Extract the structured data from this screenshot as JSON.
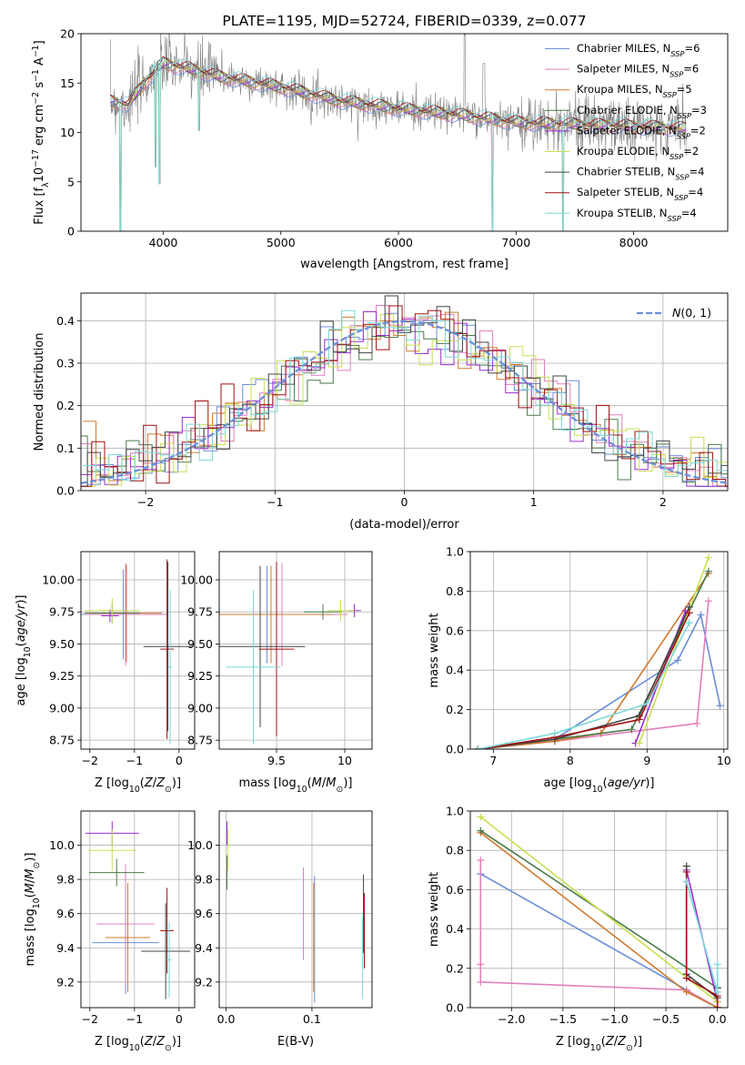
{
  "colors": {
    "chabrier_miles": "#6a8fd8",
    "salpeter_miles": "#e17fbd",
    "kroupa_miles": "#d07a30",
    "chabrier_elodie": "#4a7a4a",
    "salpeter_elodie": "#9a2fd0",
    "kroupa_elodie": "#c8e050",
    "chabrier_stelib": "#444444",
    "salpeter_stelib": "#a01010",
    "kroupa_stelib": "#7ad8d8",
    "normal_curve": "#6a8fd8",
    "data_spectrum": "#808080"
  },
  "chart_data": [
    {
      "id": "spectrum",
      "type": "line",
      "title": "PLATE=1195, MJD=52724, FIBERID=0339, z=0.077",
      "xlabel": "wavelength [Angstrom, rest frame]",
      "ylabel": "Flux [f_λ 10^-17 erg cm^-2 s^-1 A^-1]",
      "xlim": [
        3300,
        8800
      ],
      "ylim": [
        0,
        20
      ],
      "xticks": [
        4000,
        5000,
        6000,
        7000,
        8000
      ],
      "yticks": [
        0,
        5,
        10,
        15,
        20
      ],
      "grid": false,
      "legend_position": "top-right",
      "legend": [
        {
          "label": "Chabrier MILES, N",
          "sub": "SSP",
          "suffix": "=6",
          "color_key": "chabrier_miles"
        },
        {
          "label": "Salpeter MILES, N",
          "sub": "SSP",
          "suffix": "=6",
          "color_key": "salpeter_miles"
        },
        {
          "label": "Kroupa MILES, N",
          "sub": "SSP",
          "suffix": "=5",
          "color_key": "kroupa_miles"
        },
        {
          "label": "Chabrier ELODIE, N",
          "sub": "SSP",
          "suffix": "=3",
          "color_key": "chabrier_elodie"
        },
        {
          "label": "Salpeter ELODIE, N",
          "sub": "SSP",
          "suffix": "=2",
          "color_key": "salpeter_elodie"
        },
        {
          "label": "Kroupa ELODIE, N",
          "sub": "SSP",
          "suffix": "=2",
          "color_key": "kroupa_elodie"
        },
        {
          "label": "Chabrier STELIB, N",
          "sub": "SSP",
          "suffix": "=4",
          "color_key": "chabrier_stelib"
        },
        {
          "label": "Salpeter STELIB, N",
          "sub": "SSP",
          "suffix": "=4",
          "color_key": "salpeter_stelib"
        },
        {
          "label": "Kroupa STELIB, N",
          "sub": "SSP",
          "suffix": "=4",
          "color_key": "kroupa_stelib"
        }
      ],
      "continuum": [
        [
          3550,
          13.2
        ],
        [
          3700,
          12.8
        ],
        [
          3850,
          15.2
        ],
        [
          4000,
          17.0
        ],
        [
          4200,
          16.5
        ],
        [
          4500,
          15.6
        ],
        [
          5000,
          14.6
        ],
        [
          5500,
          13.2
        ],
        [
          6000,
          12.4
        ],
        [
          6500,
          11.8
        ],
        [
          7000,
          11.0
        ],
        [
          7500,
          10.8
        ],
        [
          8000,
          10.6
        ],
        [
          8400,
          10.4
        ]
      ],
      "absorption_lines": [
        [
          3635,
          0
        ],
        [
          3934,
          6.5
        ],
        [
          3969,
          4.8
        ],
        [
          4305,
          10.2
        ],
        [
          6800,
          0
        ],
        [
          7400,
          0
        ]
      ],
      "data_range": [
        3550,
        8450
      ]
    },
    {
      "id": "residuals",
      "type": "histogram",
      "xlabel": "(data-model)/error",
      "ylabel": "Normed distribution",
      "xlim": [
        -2.5,
        2.5
      ],
      "ylim": [
        0,
        0.465
      ],
      "xticks": [
        -2,
        -1,
        0,
        1,
        2
      ],
      "yticks": [
        0.0,
        0.1,
        0.2,
        0.3,
        0.4
      ],
      "grid": true,
      "legend": [
        {
          "label": "N(0,1)",
          "color_key": "normal_curve",
          "style": "dashed"
        }
      ],
      "legend_position": "top-right",
      "bin_width": 0.1
    },
    {
      "id": "age_vs_Z",
      "type": "errorbar",
      "xlabel": "Z [log10(Z/Z_sun)]",
      "ylabel": "age [log10(age/yr)]",
      "xlim": [
        -2.2,
        0.35
      ],
      "ylim": [
        8.68,
        10.22
      ],
      "xticks": [
        -2,
        -1,
        0
      ],
      "yticks": [
        8.75,
        9.0,
        9.25,
        9.5,
        9.75,
        10.0
      ],
      "points": [
        {
          "color_key": "chabrier_miles",
          "x": -1.25,
          "xerr": 1.0,
          "y": 9.73,
          "yerr": 0.35
        },
        {
          "color_key": "salpeter_miles",
          "x": -1.2,
          "xerr": 0.9,
          "y": 9.73,
          "yerr": 0.4
        },
        {
          "color_key": "kroupa_miles",
          "x": -1.18,
          "xerr": 0.8,
          "y": 9.74,
          "yerr": 0.38
        },
        {
          "color_key": "chabrier_elodie",
          "x": -1.5,
          "xerr": 0.62,
          "y": 9.74,
          "yerr": 0.08
        },
        {
          "color_key": "salpeter_elodie",
          "x": -1.55,
          "xerr": 0.2,
          "y": 9.72,
          "yerr": 0.05
        },
        {
          "color_key": "kroupa_elodie",
          "x": -1.5,
          "xerr": 0.62,
          "y": 9.76,
          "yerr": 0.1
        },
        {
          "color_key": "chabrier_stelib",
          "x": -0.25,
          "xerr": 0.55,
          "y": 9.48,
          "yerr": 0.66
        },
        {
          "color_key": "salpeter_stelib",
          "x": -0.27,
          "xerr": 0.15,
          "y": 9.46,
          "yerr": 0.7
        },
        {
          "color_key": "kroupa_stelib",
          "x": -0.2,
          "xerr": 0.05,
          "y": 9.32,
          "yerr": 0.6
        }
      ]
    },
    {
      "id": "age_vs_mass",
      "type": "errorbar",
      "xlabel": "mass [log10(M/M_sun)]",
      "ylabel": "",
      "xlim": [
        9.08,
        10.2
      ],
      "ylim": [
        8.68,
        10.22
      ],
      "xticks": [
        9.5,
        10.0
      ],
      "yticks": [
        8.75,
        9.0,
        9.25,
        9.5,
        9.75,
        10.0
      ],
      "points": [
        {
          "color_key": "chabrier_miles",
          "x": 9.43,
          "xerr": 0.45,
          "y": 9.73,
          "yerr": 0.38
        },
        {
          "color_key": "salpeter_miles",
          "x": 9.54,
          "xerr": 0.48,
          "y": 9.73,
          "yerr": 0.4
        },
        {
          "color_key": "kroupa_miles",
          "x": 9.46,
          "xerr": 0.45,
          "y": 9.73,
          "yerr": 0.38
        },
        {
          "color_key": "chabrier_elodie",
          "x": 9.84,
          "xerr": 0.14,
          "y": 9.75,
          "yerr": 0.06
        },
        {
          "color_key": "salpeter_elodie",
          "x": 10.07,
          "xerr": 0.05,
          "y": 9.76,
          "yerr": 0.05
        },
        {
          "color_key": "kroupa_elodie",
          "x": 9.97,
          "xerr": 0.1,
          "y": 9.76,
          "yerr": 0.08
        },
        {
          "color_key": "chabrier_stelib",
          "x": 9.38,
          "xerr": 0.33,
          "y": 9.48,
          "yerr": 0.63
        },
        {
          "color_key": "salpeter_stelib",
          "x": 9.5,
          "xerr": 0.13,
          "y": 9.46,
          "yerr": 0.68
        },
        {
          "color_key": "kroupa_stelib",
          "x": 9.33,
          "xerr": 0.2,
          "y": 9.32,
          "yerr": 0.6
        }
      ]
    },
    {
      "id": "mass_weight_vs_age",
      "type": "line",
      "xlabel": "age [log10(age/yr)]",
      "ylabel": "mass weight",
      "xlim": [
        6.7,
        10.05
      ],
      "ylim": [
        0,
        1.0
      ],
      "xticks": [
        7,
        8,
        9,
        10
      ],
      "yticks": [
        0.0,
        0.2,
        0.4,
        0.6,
        0.8,
        1.0
      ],
      "grid": true,
      "series": [
        {
          "color_key": "chabrier_miles",
          "x": [
            6.8,
            7.8,
            9.4,
            9.7,
            9.95
          ],
          "y": [
            0.0,
            0.05,
            0.45,
            0.68,
            0.22
          ]
        },
        {
          "color_key": "salpeter_miles",
          "x": [
            6.8,
            7.8,
            9.65,
            9.8
          ],
          "y": [
            0.0,
            0.04,
            0.13,
            0.75
          ]
        },
        {
          "color_key": "kroupa_miles",
          "x": [
            6.8,
            7.8,
            8.4,
            9.8
          ],
          "y": [
            0.0,
            0.04,
            0.08,
            0.89
          ]
        },
        {
          "color_key": "chabrier_elodie",
          "x": [
            6.8,
            8.8,
            9.8
          ],
          "y": [
            0.0,
            0.1,
            0.9
          ]
        },
        {
          "color_key": "salpeter_elodie",
          "x": [
            8.85,
            9.5
          ],
          "y": [
            0.03,
            0.7
          ]
        },
        {
          "color_key": "kroupa_elodie",
          "x": [
            8.9,
            9.8
          ],
          "y": [
            0.03,
            0.97
          ]
        },
        {
          "color_key": "chabrier_stelib",
          "x": [
            6.8,
            7.8,
            8.9,
            9.55
          ],
          "y": [
            0.0,
            0.05,
            0.17,
            0.72
          ]
        },
        {
          "color_key": "salpeter_stelib",
          "x": [
            6.8,
            7.8,
            8.9,
            9.55
          ],
          "y": [
            0.0,
            0.06,
            0.15,
            0.69
          ]
        },
        {
          "color_key": "kroupa_stelib",
          "x": [
            6.8,
            7.8,
            9.0,
            9.55
          ],
          "y": [
            0.0,
            0.08,
            0.23,
            0.64
          ]
        }
      ]
    },
    {
      "id": "mass_vs_Z",
      "type": "errorbar",
      "xlabel": "Z [log10(Z/Z_sun)]",
      "ylabel": "mass [log10(M/M_sun)]",
      "xlim": [
        -2.2,
        0.35
      ],
      "ylim": [
        9.05,
        10.2
      ],
      "xticks": [
        -2,
        -1,
        0
      ],
      "yticks": [
        9.2,
        9.4,
        9.6,
        9.8,
        10.0
      ],
      "points": [
        {
          "color_key": "chabrier_miles",
          "x": -1.2,
          "xerr": 0.75,
          "y": 9.43,
          "yerr": 0.3
        },
        {
          "color_key": "salpeter_miles",
          "x": -1.2,
          "xerr": 0.65,
          "y": 9.54,
          "yerr": 0.35
        },
        {
          "color_key": "kroupa_miles",
          "x": -1.15,
          "xerr": 0.5,
          "y": 9.46,
          "yerr": 0.32
        },
        {
          "color_key": "chabrier_elodie",
          "x": -1.4,
          "xerr": 0.62,
          "y": 9.84,
          "yerr": 0.08
        },
        {
          "color_key": "salpeter_elodie",
          "x": -1.5,
          "xerr": 0.6,
          "y": 10.07,
          "yerr": 0.07
        },
        {
          "color_key": "kroupa_elodie",
          "x": -1.5,
          "xerr": 0.55,
          "y": 9.97,
          "yerr": 0.12
        },
        {
          "color_key": "chabrier_stelib",
          "x": -0.3,
          "xerr": 0.55,
          "y": 9.38,
          "yerr": 0.28
        },
        {
          "color_key": "salpeter_stelib",
          "x": -0.27,
          "xerr": 0.15,
          "y": 9.5,
          "yerr": 0.25
        },
        {
          "color_key": "kroupa_stelib",
          "x": -0.22,
          "xerr": 0.05,
          "y": 9.33,
          "yerr": 0.22
        }
      ]
    },
    {
      "id": "mass_vs_ebv",
      "type": "errorbar",
      "xlabel": "E(B-V)",
      "ylabel": "",
      "xlim": [
        -0.008,
        0.17
      ],
      "ylim": [
        9.05,
        10.2
      ],
      "xticks": [
        0.0,
        0.1
      ],
      "yticks": [
        9.2,
        9.4,
        9.6,
        9.8,
        10.0
      ],
      "points": [
        {
          "color_key": "chabrier_miles",
          "x": 0.103,
          "xerr": 0.0,
          "y": 9.45,
          "yerr": 0.37
        },
        {
          "color_key": "salpeter_miles",
          "x": 0.09,
          "xerr": 0.0,
          "y": 9.6,
          "yerr": 0.27
        },
        {
          "color_key": "kroupa_miles",
          "x": 0.102,
          "xerr": 0.0,
          "y": 9.46,
          "yerr": 0.32
        },
        {
          "color_key": "chabrier_elodie",
          "x": 0.001,
          "xerr": 0.0,
          "y": 9.84,
          "yerr": 0.1
        },
        {
          "color_key": "salpeter_elodie",
          "x": 0.001,
          "xerr": 0.0,
          "y": 10.07,
          "yerr": 0.07
        },
        {
          "color_key": "kroupa_elodie",
          "x": 0.002,
          "xerr": 0.0,
          "y": 9.97,
          "yerr": 0.12
        },
        {
          "color_key": "chabrier_stelib",
          "x": 0.16,
          "xerr": 0.0,
          "y": 9.6,
          "yerr": 0.23
        },
        {
          "color_key": "salpeter_stelib",
          "x": 0.161,
          "xerr": 0.0,
          "y": 9.5,
          "yerr": 0.22
        },
        {
          "color_key": "kroupa_stelib",
          "x": 0.159,
          "xerr": 0.0,
          "y": 9.34,
          "yerr": 0.24
        }
      ]
    },
    {
      "id": "mass_weight_vs_Z",
      "type": "line",
      "xlabel": "Z [log10(Z/Z_sun)]",
      "ylabel": "mass weight",
      "xlim": [
        -2.4,
        0.1
      ],
      "ylim": [
        0,
        1.0
      ],
      "xticks": [
        -2.0,
        -1.5,
        -1.0,
        -0.5,
        0.0
      ],
      "yticks": [
        0.0,
        0.2,
        0.4,
        0.6,
        0.8,
        1.0
      ],
      "grid": true,
      "series": [
        {
          "color_key": "chabrier_miles",
          "x": [
            -2.3,
            -0.3,
            0.0
          ],
          "y": [
            0.68,
            0.09,
            0.0
          ]
        },
        {
          "color_key": "salpeter_miles",
          "x": [
            -2.3,
            -2.3,
            -2.3,
            -0.3,
            0.0
          ],
          "y": [
            0.75,
            0.22,
            0.13,
            0.09,
            0.0
          ]
        },
        {
          "color_key": "kroupa_miles",
          "x": [
            -2.3,
            -0.3,
            0.0
          ],
          "y": [
            0.89,
            0.08,
            0.0
          ]
        },
        {
          "color_key": "chabrier_elodie",
          "x": [
            -2.3,
            0.0
          ],
          "y": [
            0.9,
            0.1
          ]
        },
        {
          "color_key": "salpeter_elodie",
          "x": [
            -0.3,
            0.0
          ],
          "y": [
            0.7,
            0.03
          ]
        },
        {
          "color_key": "kroupa_elodie",
          "x": [
            -2.3,
            0.0
          ],
          "y": [
            0.97,
            0.03
          ]
        },
        {
          "color_key": "chabrier_stelib",
          "x": [
            -0.3,
            -0.3,
            0.0,
            0.0
          ],
          "y": [
            0.72,
            0.17,
            0.05,
            0.1
          ]
        },
        {
          "color_key": "salpeter_stelib",
          "x": [
            -0.3,
            -0.3,
            0.0,
            0.0
          ],
          "y": [
            0.69,
            0.15,
            0.06,
            0.0
          ]
        },
        {
          "color_key": "kroupa_stelib",
          "x": [
            -0.3,
            0.0,
            0.0
          ],
          "y": [
            0.64,
            0.08,
            0.22
          ]
        }
      ]
    }
  ]
}
